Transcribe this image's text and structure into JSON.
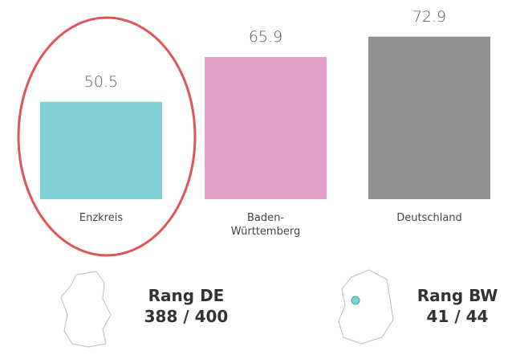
{
  "chart_data": {
    "type": "bar",
    "categories": [
      "Enzkreis",
      "Baden-\nWürttemberg",
      "Deutschland"
    ],
    "values": [
      50.5,
      65.9,
      72.9
    ],
    "colors": [
      "#80d2d7",
      "#e1a0c8",
      "#8f8f8f"
    ],
    "ylim": [
      17,
      80
    ],
    "annotations": [
      "Rang DE",
      "388 / 400",
      "Rang BW",
      "41 / 44"
    ]
  }
}
